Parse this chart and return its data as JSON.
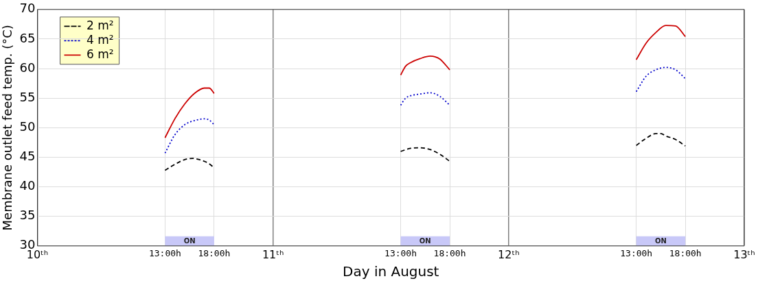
{
  "chart_data": {
    "type": "line",
    "xlabel": "Day in August",
    "ylabel": "Membrane outlet feed temp. (°C)",
    "xlim": [
      "--08-10",
      "--08-13"
    ],
    "ylim": [
      30,
      70
    ],
    "yticks": [
      30,
      35,
      40,
      45,
      50,
      55,
      60,
      65,
      70
    ],
    "xticks": [
      {
        "value": "--08-10",
        "label": "10ᵗʰ"
      },
      {
        "value": "--08-10T13:00",
        "label": "13:00h"
      },
      {
        "value": "--08-10T18:00",
        "label": "18:00h"
      },
      {
        "value": "--08-11",
        "label": "11ᵗʰ"
      },
      {
        "value": "--08-11T13:00",
        "label": "13:00h"
      },
      {
        "value": "--08-11T18:00",
        "label": "18:00h"
      },
      {
        "value": "--08-12",
        "label": "12ᵗʰ"
      },
      {
        "value": "--08-12T13:00",
        "label": "13:00h"
      },
      {
        "value": "--08-12T18:00",
        "label": "18:00h"
      },
      {
        "value": "--08-13",
        "label": "13ᵗʰ"
      }
    ],
    "grid": true,
    "legend": "top left",
    "marker": "none",
    "series": [
      {
        "name": "2 m²",
        "color": "#000000",
        "line_style": "dashed",
        "x": [
          "--08-10T13:00",
          "--08-10T14:00",
          "--08-10T15:00",
          "--08-10T15:48",
          "--08-10T16:30",
          "--08-10T17:30",
          "--08-10T18:00",
          "--08-11",
          "--08-11T13:00",
          "--08-11T14:00",
          "--08-11T15:00",
          "--08-11T16:00",
          "--08-11T17:00",
          "--08-11T18:00",
          "--08-12",
          "--08-12T13:00",
          "--08-12T14:00",
          "--08-12T15:00",
          "--08-12T15:30",
          "--08-12T16:00",
          "--08-12T17:00",
          "--08-12T18:00"
        ],
        "values": [
          42.8,
          43.8,
          44.6,
          44.8,
          44.6,
          43.9,
          43.2,
          null,
          46,
          46.5,
          46.6,
          46.3,
          45.5,
          44.3,
          null,
          47,
          48.2,
          49,
          49,
          48.6,
          48,
          46.9
        ]
      },
      {
        "name": "4 m²",
        "color": "#0000cc",
        "line_style": "dotted",
        "x": [
          "--08-10T13:00",
          "--08-10T14:00",
          "--08-10T15:00",
          "--08-10T16:00",
          "--08-10T17:00",
          "--08-10T17:30",
          "--08-10T18:00",
          "--08-11",
          "--08-11T13:00",
          "--08-11T13:30",
          "--08-11T14:00",
          "--08-11T15:00",
          "--08-11T16:00",
          "--08-11T17:00",
          "--08-11T18:00",
          "--08-12",
          "--08-12T13:00",
          "--08-12T14:00",
          "--08-12T15:00",
          "--08-12T16:00",
          "--08-12T17:00",
          "--08-12T18:00"
        ],
        "values": [
          45.7,
          48.8,
          50.5,
          51.2,
          51.5,
          51.3,
          50.5,
          null,
          53.8,
          55,
          55.4,
          55.7,
          55.9,
          55.3,
          53.8,
          null,
          56.1,
          58.7,
          59.8,
          60.2,
          59.8,
          58.3
        ]
      },
      {
        "name": "6 m²",
        "color": "#cc0000",
        "line_style": "solid",
        "x": [
          "--08-10T13:00",
          "--08-10T14:00",
          "--08-10T15:00",
          "--08-10T16:00",
          "--08-10T17:00",
          "--08-10T17:30",
          "--08-10T18:00",
          "--08-11",
          "--08-11T13:00",
          "--08-11T13:30",
          "--08-11T14:00",
          "--08-11T15:00",
          "--08-11T16:00",
          "--08-11T16:30",
          "--08-11T17:00",
          "--08-11T18:00",
          "--08-12",
          "--08-12T13:00",
          "--08-12T14:00",
          "--08-12T15:00",
          "--08-12T16:00",
          "--08-12T17:00",
          "--08-12T18:00"
        ],
        "values": [
          48.3,
          51.5,
          54,
          55.8,
          56.7,
          56.7,
          55.8,
          null,
          58.9,
          60.4,
          61,
          61.7,
          62.1,
          62,
          61.6,
          59.8,
          null,
          61.5,
          64.3,
          66.1,
          67.3,
          67.2,
          65.4
        ]
      }
    ],
    "bands": [
      {
        "axis": "x",
        "from": "--08-10T13:00",
        "to": "--08-10T18:00",
        "label": "ON",
        "color": "#c8c8f8"
      },
      {
        "axis": "x",
        "from": "--08-11T13:00",
        "to": "--08-11T18:00",
        "label": "ON",
        "color": "#c8c8f8"
      },
      {
        "axis": "x",
        "from": "--08-12T13:00",
        "to": "--08-12T18:00",
        "label": "ON",
        "color": "#c8c8f8"
      }
    ]
  }
}
